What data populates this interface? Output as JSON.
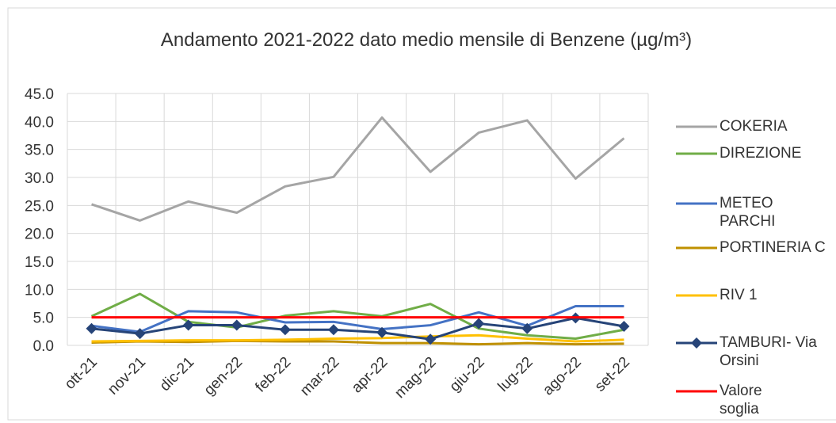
{
  "chart_data": {
    "type": "line",
    "title": "Andamento 2021-2022 dato medio mensile di Benzene (µg/m³)",
    "categories": [
      "ott-21",
      "nov-21",
      "dic-21",
      "gen-22",
      "feb-22",
      "mar-22",
      "apr-22",
      "mag-22",
      "giu-22",
      "lug-22",
      "ago-22",
      "set-22"
    ],
    "series": [
      {
        "name": "COKERIA",
        "color": "#a5a5a5",
        "values": [
          25.2,
          22.3,
          25.7,
          23.7,
          28.4,
          30.1,
          40.7,
          31.0,
          38.0,
          40.2,
          29.8,
          37.0
        ]
      },
      {
        "name": "DIREZIONE",
        "color": "#70ad47",
        "values": [
          5.2,
          9.2,
          4.2,
          3.2,
          5.3,
          6.1,
          5.2,
          7.4,
          3.0,
          1.8,
          1.2,
          2.8
        ]
      },
      {
        "name": "METEO PARCHI",
        "color": "#4472c4",
        "values": [
          3.5,
          2.4,
          6.1,
          5.9,
          4.1,
          4.2,
          2.9,
          3.6,
          5.9,
          3.5,
          7.0,
          7.0
        ]
      },
      {
        "name": "PORTINERIA C",
        "color": "#bf9000",
        "values": [
          0.5,
          0.7,
          0.6,
          0.8,
          0.7,
          0.7,
          0.4,
          0.4,
          0.2,
          0.4,
          0.2,
          0.3
        ]
      },
      {
        "name": "RIV 1",
        "color": "#ffc000",
        "values": [
          0.7,
          0.8,
          0.9,
          0.9,
          1.0,
          1.2,
          1.3,
          1.6,
          1.8,
          1.2,
          0.7,
          1.0
        ]
      },
      {
        "name": "TAMBURI- Via Orsini",
        "color": "#264478",
        "marker": "diamond",
        "values": [
          3.0,
          2.1,
          3.6,
          3.6,
          2.8,
          2.8,
          2.3,
          1.1,
          3.9,
          3.0,
          4.9,
          3.4
        ]
      },
      {
        "name": "Valore soglia",
        "color": "#ff0000",
        "values": [
          5,
          5,
          5,
          5,
          5,
          5,
          5,
          5,
          5,
          5,
          5,
          5
        ]
      }
    ],
    "ylim": [
      0,
      45
    ],
    "yticks": [
      {
        "value": 0,
        "label": "0.0"
      },
      {
        "value": 5,
        "label": "5.0"
      },
      {
        "value": 10,
        "label": "10.0"
      },
      {
        "value": 15,
        "label": "15.0"
      },
      {
        "value": 20,
        "label": "20.0"
      },
      {
        "value": 25,
        "label": "25.0"
      },
      {
        "value": 30,
        "label": "30.0"
      },
      {
        "value": 35,
        "label": "35.0"
      },
      {
        "value": 40,
        "label": "40.0"
      },
      {
        "value": 45,
        "label": "45.0"
      }
    ],
    "grid": true,
    "legend": "right"
  }
}
